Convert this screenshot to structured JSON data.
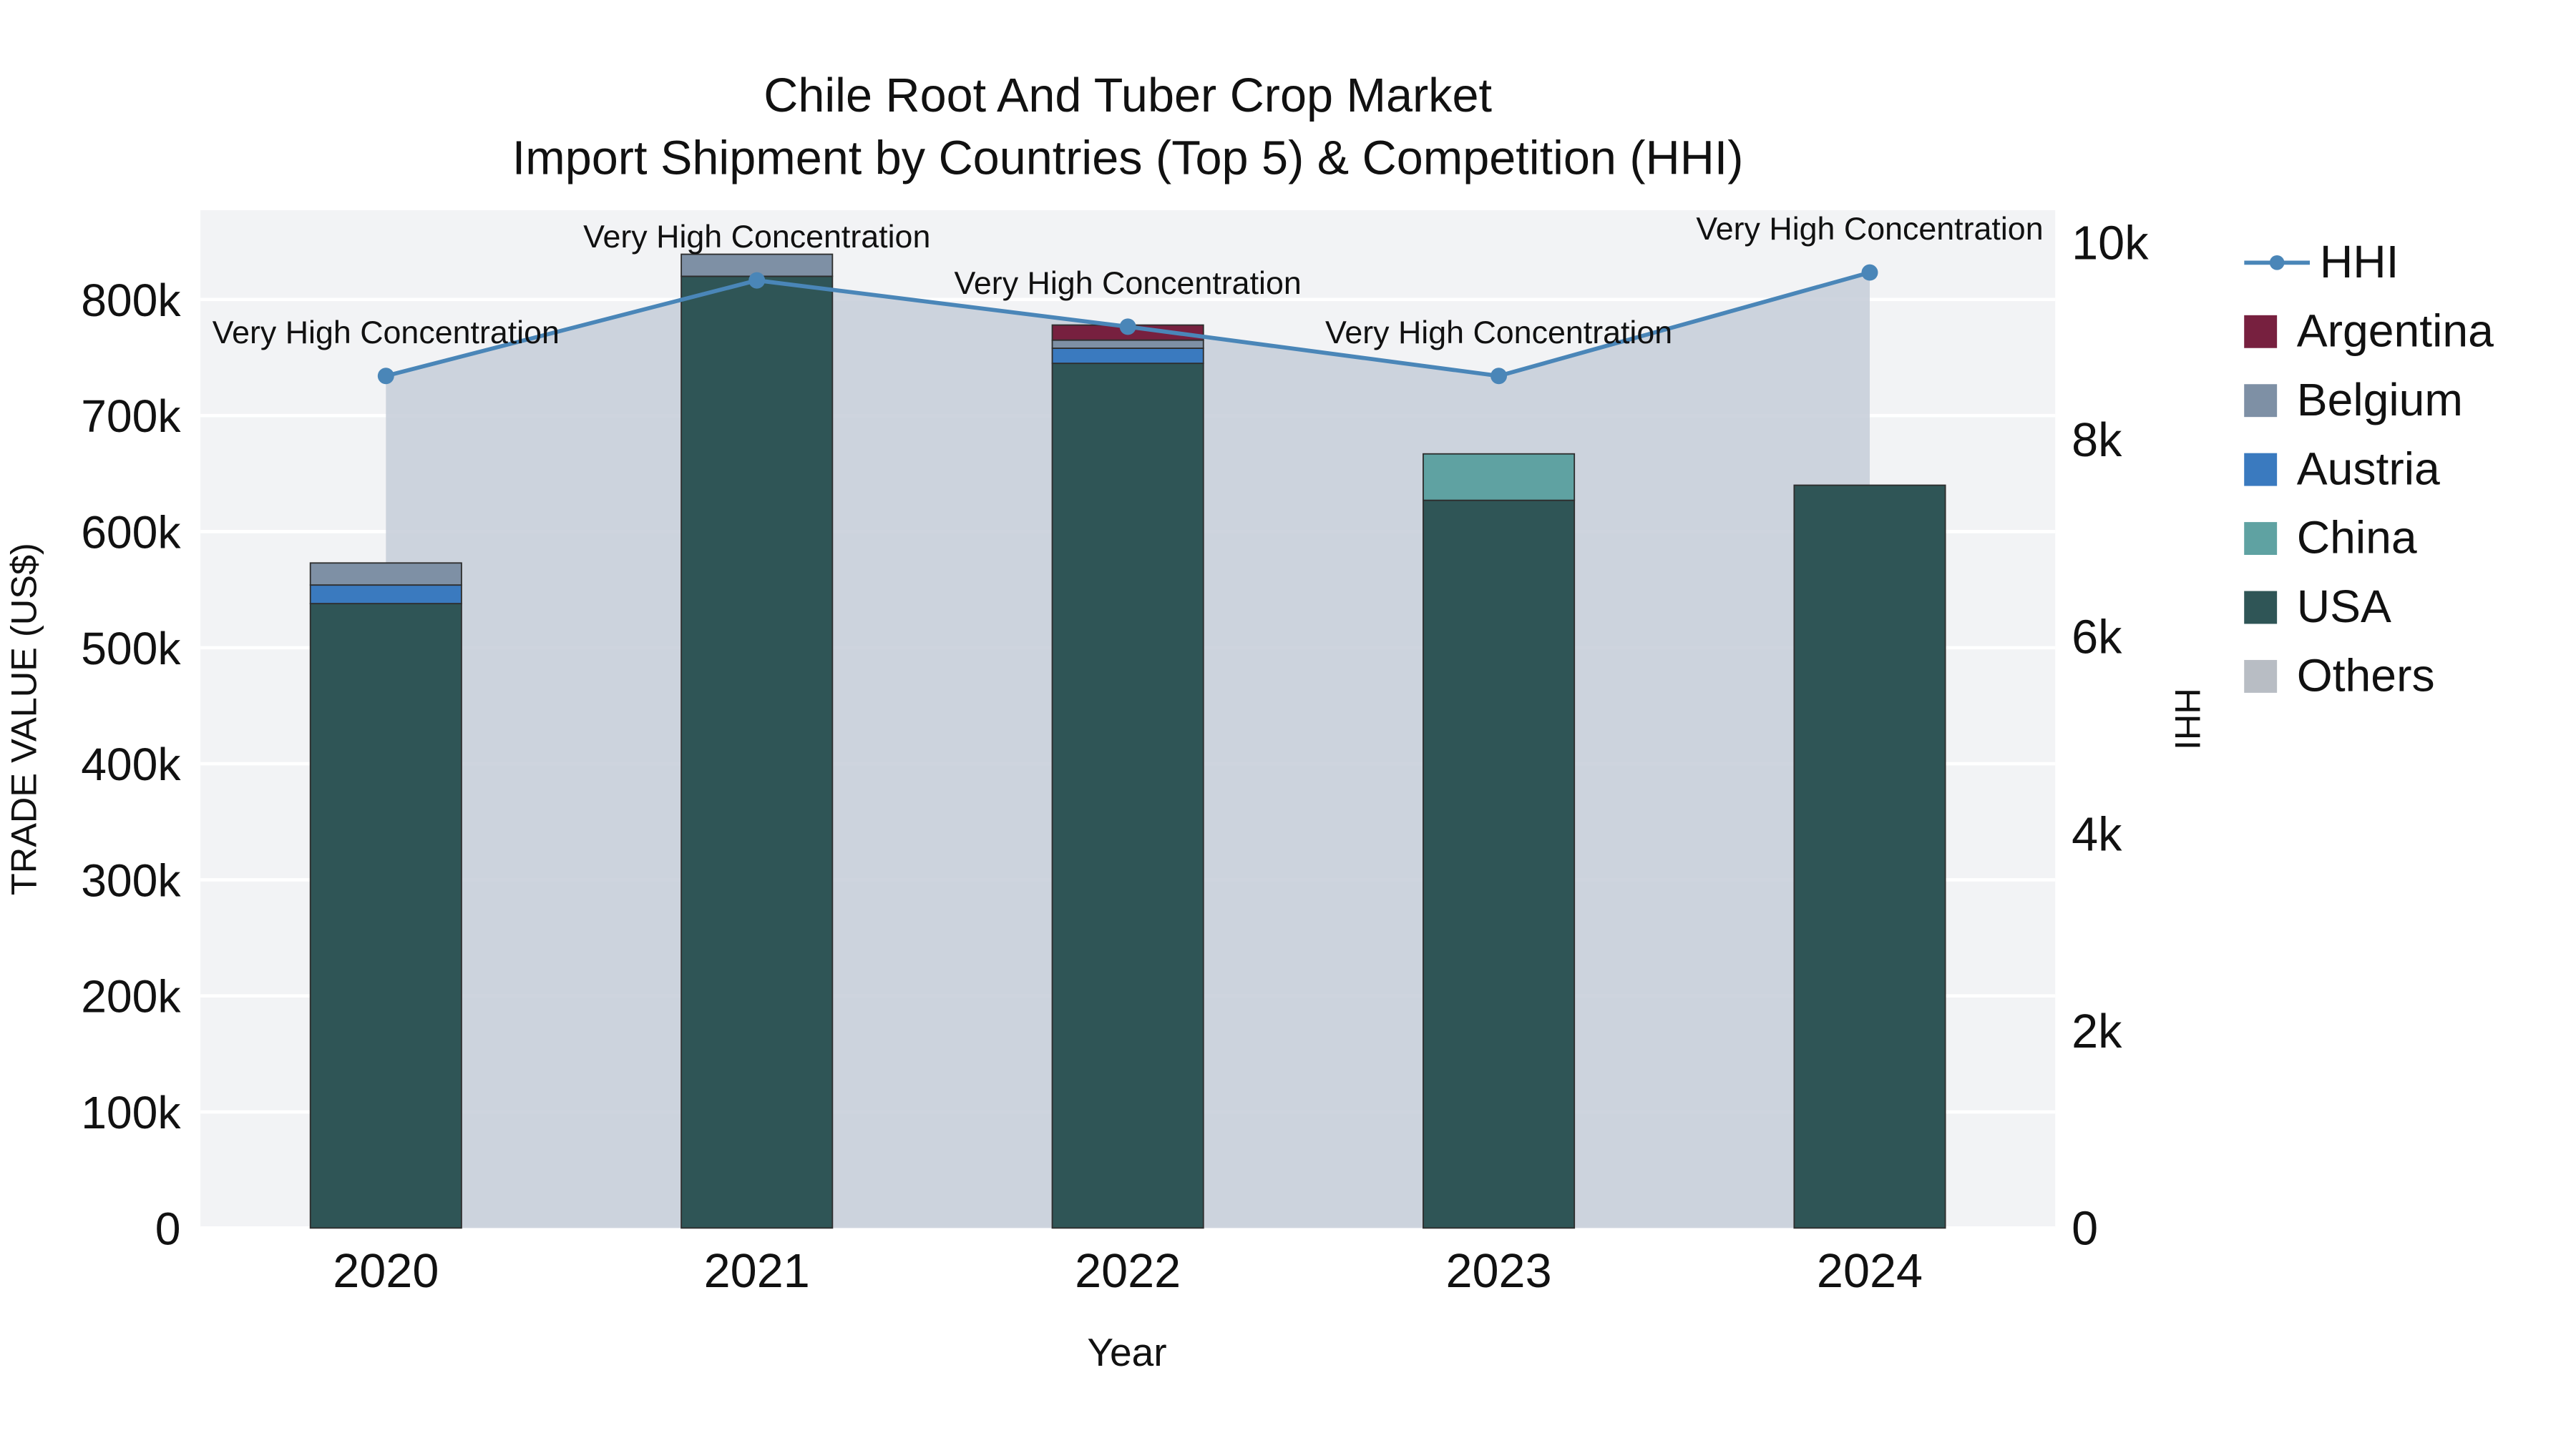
{
  "chart_data": {
    "type": "bar+line",
    "title": "Chile Root And Tuber Crop Market",
    "subtitle": "Import Shipment by Countries (Top 5) & Competition (HHI)",
    "xlabel": "Year",
    "ylabel_left": "TRADE VALUE (US$)",
    "ylabel_right": "HHI",
    "categories": [
      "2020",
      "2021",
      "2022",
      "2023",
      "2024"
    ],
    "series": [
      {
        "name": "USA",
        "color": "#2f5556",
        "values": [
          538000,
          820000,
          745000,
          627000,
          640000
        ]
      },
      {
        "name": "China",
        "color": "#5fa2a2",
        "values": [
          0,
          0,
          0,
          40000,
          0
        ]
      },
      {
        "name": "Austria",
        "color": "#3a7abf",
        "values": [
          16000,
          0,
          13000,
          0,
          0
        ]
      },
      {
        "name": "Belgium",
        "color": "#7e90a5",
        "values": [
          19000,
          19000,
          7000,
          0,
          0
        ]
      },
      {
        "name": "Argentina",
        "color": "#77203f",
        "values": [
          0,
          0,
          13000,
          0,
          0
        ]
      },
      {
        "name": "Others",
        "color": "#b8bdc4",
        "values": [
          0,
          0,
          0,
          0,
          0
        ]
      }
    ],
    "hhi": {
      "name": "HHI",
      "color": "#4a86b8",
      "fill_color": "#c5ccd8",
      "values": [
        8650,
        9620,
        9150,
        8650,
        9700
      ],
      "annotations": [
        "Very High Concentration",
        "Very High Concentration",
        "Very High Concentration",
        "Very High Concentration",
        "Very High Concentration"
      ]
    },
    "left_axis_max": 877000,
    "right_axis_max": 10333,
    "left_ticks": [
      {
        "value": 0,
        "label": "0"
      },
      {
        "value": 100000,
        "label": "100k"
      },
      {
        "value": 200000,
        "label": "200k"
      },
      {
        "value": 300000,
        "label": "300k"
      },
      {
        "value": 400000,
        "label": "400k"
      },
      {
        "value": 500000,
        "label": "500k"
      },
      {
        "value": 600000,
        "label": "600k"
      },
      {
        "value": 700000,
        "label": "700k"
      },
      {
        "value": 800000,
        "label": "800k"
      }
    ],
    "right_ticks": [
      {
        "value": 0,
        "label": "0"
      },
      {
        "value": 2000,
        "label": "2k"
      },
      {
        "value": 4000,
        "label": "4k"
      },
      {
        "value": 6000,
        "label": "6k"
      },
      {
        "value": 8000,
        "label": "8k"
      },
      {
        "value": 10000,
        "label": "10k"
      }
    ],
    "legend": [
      {
        "label": "HHI",
        "type": "line",
        "color": "#4a86b8"
      },
      {
        "label": "Argentina",
        "type": "square",
        "color": "#77203f"
      },
      {
        "label": "Belgium",
        "type": "square",
        "color": "#7e90a5"
      },
      {
        "label": "Austria",
        "type": "square",
        "color": "#3a7abf"
      },
      {
        "label": "China",
        "type": "square",
        "color": "#5fa2a2"
      },
      {
        "label": "USA",
        "type": "square",
        "color": "#2f5556"
      },
      {
        "label": "Others",
        "type": "square",
        "color": "#b8bdc4"
      }
    ]
  }
}
